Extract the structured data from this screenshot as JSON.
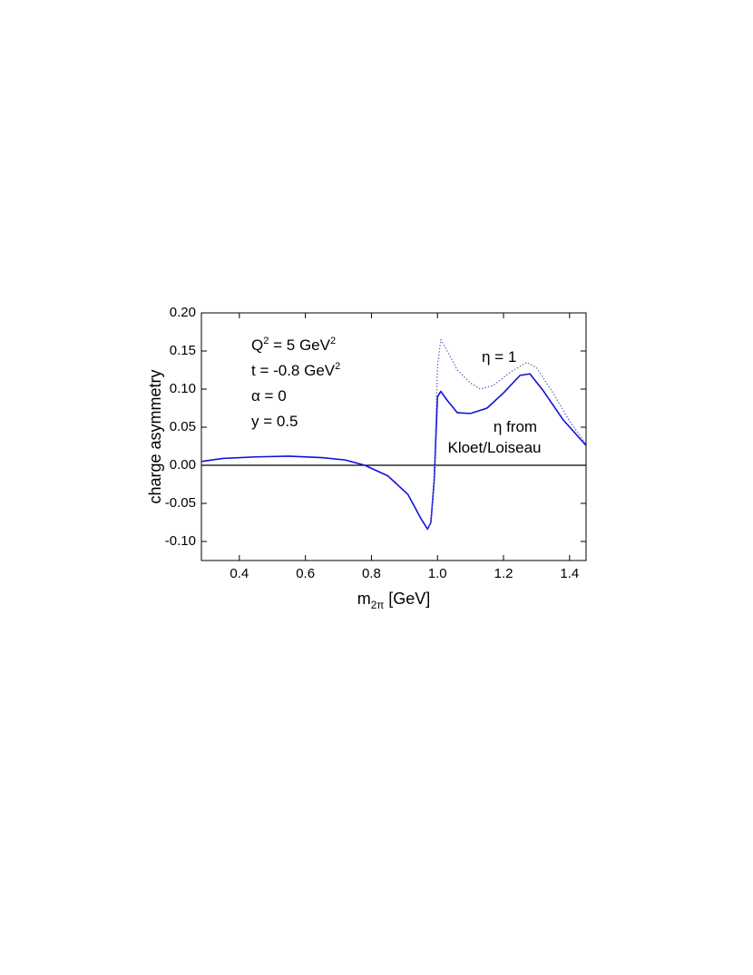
{
  "chart_data": {
    "type": "line",
    "x_label": [
      {
        "text": "m"
      },
      {
        "text": "2π",
        "sub": true
      },
      {
        "text": " [GeV]"
      }
    ],
    "y_label": "charge asymmetry",
    "xlim": [
      0.285,
      1.45
    ],
    "ylim": [
      -0.125,
      0.2
    ],
    "xticks": [
      0.4,
      0.6,
      0.8,
      1.0,
      1.2,
      1.4
    ],
    "yticks": [
      {
        "value": 0.2,
        "label": "0.20"
      },
      {
        "value": 0.15,
        "label": "0.15"
      },
      {
        "value": 0.1,
        "label": "0.10"
      },
      {
        "value": 0.05,
        "label": "0.05"
      },
      {
        "value": 0,
        "label": "0.00"
      },
      {
        "value": -0.05,
        "label": "-0.05"
      },
      {
        "value": -0.1,
        "label": "-0.10"
      }
    ],
    "zero_line": true,
    "series": [
      {
        "color": "#1010e0",
        "style": "solid",
        "x": [
          0.285,
          0.35,
          0.45,
          0.55,
          0.65,
          0.72,
          0.78,
          0.85,
          0.91,
          0.95,
          0.97,
          0.98,
          0.99,
          1.0,
          1.01,
          1.03,
          1.06,
          1.1,
          1.15,
          1.2,
          1.25,
          1.28,
          1.32,
          1.38,
          1.45
        ],
        "values": [
          0.005,
          0.009,
          0.011,
          0.012,
          0.01,
          0.007,
          0.0,
          -0.014,
          -0.038,
          -0.07,
          -0.084,
          -0.075,
          -0.02,
          0.09,
          0.097,
          0.085,
          0.069,
          0.068,
          0.075,
          0.095,
          0.118,
          0.12,
          0.098,
          0.06,
          0.026
        ]
      },
      {
        "color": "#6060c0",
        "style": "dotted",
        "x": [
          0.97,
          0.98,
          0.99,
          1.0,
          1.01,
          1.03,
          1.06,
          1.1,
          1.13,
          1.17,
          1.22,
          1.27,
          1.3,
          1.35,
          1.4,
          1.45
        ],
        "values": [
          -0.084,
          -0.075,
          -0.02,
          0.13,
          0.165,
          0.15,
          0.125,
          0.108,
          0.1,
          0.105,
          0.122,
          0.135,
          0.128,
          0.095,
          0.058,
          0.028
        ]
      }
    ],
    "annotations": [
      [
        {
          "text": "Q"
        },
        {
          "text": "2",
          "sup": true
        },
        {
          "text": " = 5 GeV"
        },
        {
          "text": "2",
          "sup": true
        }
      ],
      [
        {
          "text": "t = -0.8 GeV"
        },
        {
          "text": "2",
          "sup": true
        }
      ],
      [
        {
          "text": "α = 0"
        }
      ],
      [
        {
          "text": "y = 0.5"
        }
      ],
      [
        {
          "text": "η = 1"
        }
      ],
      [
        {
          "text": "η from"
        }
      ],
      [
        {
          "text": "Kloet/Loiseau"
        }
      ]
    ]
  }
}
